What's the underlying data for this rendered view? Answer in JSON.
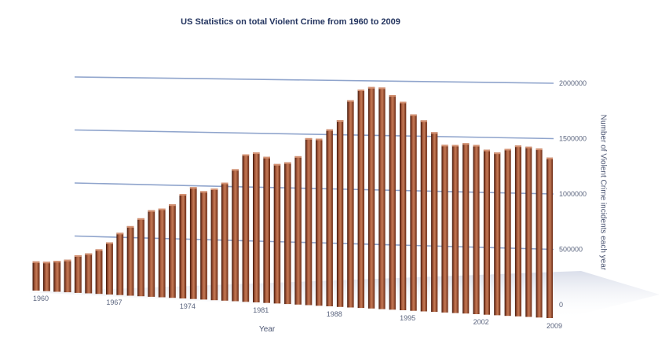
{
  "chart_data": {
    "type": "bar",
    "title": "US Statistics on total Violent Crime from 1960 to 2009",
    "xlabel": "Year",
    "ylabel": "Number of Violent Crime incidents each year",
    "ylim": [
      0,
      2000000
    ],
    "grid": true,
    "yticks": [
      "0",
      "500000",
      "1000000",
      "1500000",
      "2000000"
    ],
    "xtick_labels": [
      "1960",
      "1967",
      "1974",
      "1981",
      "1988",
      "1995",
      "2002",
      "2009"
    ],
    "categories": [
      "1960",
      "1961",
      "1962",
      "1963",
      "1964",
      "1965",
      "1966",
      "1967",
      "1968",
      "1969",
      "1970",
      "1971",
      "1972",
      "1973",
      "1974",
      "1975",
      "1976",
      "1977",
      "1978",
      "1979",
      "1980",
      "1981",
      "1982",
      "1983",
      "1984",
      "1985",
      "1986",
      "1987",
      "1988",
      "1989",
      "1990",
      "1991",
      "1992",
      "1993",
      "1994",
      "1995",
      "1996",
      "1997",
      "1998",
      "1999",
      "2000",
      "2001",
      "2002",
      "2003",
      "2004",
      "2005",
      "2006",
      "2007",
      "2008",
      "2009"
    ],
    "values": [
      288000,
      289000,
      302000,
      317000,
      365000,
      387000,
      430000,
      500000,
      595000,
      662000,
      739000,
      817000,
      835000,
      876000,
      975000,
      1040000,
      1004000,
      1030000,
      1085000,
      1209000,
      1345000,
      1362000,
      1322000,
      1258000,
      1273000,
      1328000,
      1489000,
      1484000,
      1566000,
      1646000,
      1820000,
      1912000,
      1932000,
      1926000,
      1858000,
      1799000,
      1688000,
      1636000,
      1534000,
      1426000,
      1425000,
      1439000,
      1424000,
      1384000,
      1360000,
      1391000,
      1418000,
      1408000,
      1393000,
      1318000
    ],
    "bar_color": "#7a3a22",
    "grid_color": "#8fa4cc",
    "text_color": "#23345f"
  }
}
